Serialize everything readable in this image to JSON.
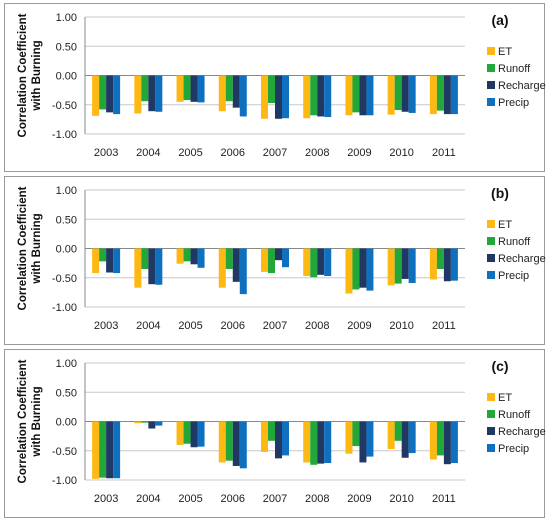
{
  "chart_data": [
    {
      "type": "bar",
      "title": "(a)",
      "ylabel_line1": "Correlation Coefficient",
      "ylabel_line2": "with Burning",
      "ylim": [
        -1.0,
        1.0
      ],
      "yticks": [
        "1.00",
        "0.50",
        "0.00",
        "-0.50",
        "-1.00"
      ],
      "categories": [
        "2003",
        "2004",
        "2005",
        "2006",
        "2007",
        "2008",
        "2009",
        "2010",
        "2011"
      ],
      "legend_position": "right",
      "series": [
        {
          "name": "ET",
          "color": "#FDB813",
          "values": [
            -0.69,
            -0.65,
            -0.45,
            -0.61,
            -0.74,
            -0.73,
            -0.68,
            -0.67,
            -0.66
          ]
        },
        {
          "name": "Runoff",
          "color": "#22A838",
          "values": [
            -0.58,
            -0.44,
            -0.42,
            -0.44,
            -0.47,
            -0.68,
            -0.63,
            -0.59,
            -0.6
          ]
        },
        {
          "name": "Recharge",
          "color": "#1F3864",
          "values": [
            -0.63,
            -0.61,
            -0.45,
            -0.55,
            -0.74,
            -0.7,
            -0.68,
            -0.62,
            -0.66
          ]
        },
        {
          "name": "Precip",
          "color": "#1070C0",
          "values": [
            -0.66,
            -0.62,
            -0.46,
            -0.7,
            -0.73,
            -0.71,
            -0.68,
            -0.64,
            -0.66
          ]
        }
      ]
    },
    {
      "type": "bar",
      "title": "(b)",
      "ylabel_line1": "Correlation Coefficient",
      "ylabel_line2": "with Burning",
      "ylim": [
        -1.0,
        1.0
      ],
      "yticks": [
        "1.00",
        "0.50",
        "0.00",
        "-0.50",
        "-1.00"
      ],
      "categories": [
        "2003",
        "2004",
        "2005",
        "2006",
        "2007",
        "2008",
        "2009",
        "2010",
        "2011"
      ],
      "legend_position": "right",
      "series": [
        {
          "name": "ET",
          "color": "#FDB813",
          "values": [
            -0.42,
            -0.67,
            -0.26,
            -0.67,
            -0.4,
            -0.47,
            -0.77,
            -0.63,
            -0.53
          ]
        },
        {
          "name": "Runoff",
          "color": "#22A838",
          "values": [
            -0.22,
            -0.35,
            -0.22,
            -0.35,
            -0.42,
            -0.49,
            -0.7,
            -0.6,
            -0.35
          ]
        },
        {
          "name": "Recharge",
          "color": "#1F3864",
          "values": [
            -0.41,
            -0.61,
            -0.27,
            -0.57,
            -0.2,
            -0.45,
            -0.67,
            -0.52,
            -0.56
          ]
        },
        {
          "name": "Precip",
          "color": "#1070C0",
          "values": [
            -0.42,
            -0.62,
            -0.33,
            -0.78,
            -0.32,
            -0.47,
            -0.72,
            -0.59,
            -0.55
          ]
        }
      ]
    },
    {
      "type": "bar",
      "title": "(c)",
      "ylabel_line1": "Correlation Coefficient",
      "ylabel_line2": "with Burning",
      "ylim": [
        -1.0,
        1.0
      ],
      "yticks": [
        "1.00",
        "0.50",
        "0.00",
        "-0.50",
        "-1.00"
      ],
      "categories": [
        "2003",
        "2004",
        "2005",
        "2006",
        "2007",
        "2008",
        "2009",
        "2010",
        "2011"
      ],
      "legend_position": "right",
      "series": [
        {
          "name": "ET",
          "color": "#FDB813",
          "values": [
            -0.98,
            -0.03,
            -0.4,
            -0.7,
            -0.52,
            -0.7,
            -0.55,
            -0.47,
            -0.65
          ]
        },
        {
          "name": "Runoff",
          "color": "#22A838",
          "values": [
            -0.96,
            -0.02,
            -0.38,
            -0.67,
            -0.33,
            -0.74,
            -0.42,
            -0.33,
            -0.58
          ]
        },
        {
          "name": "Recharge",
          "color": "#1F3864",
          "values": [
            -0.97,
            -0.12,
            -0.44,
            -0.76,
            -0.63,
            -0.72,
            -0.7,
            -0.62,
            -0.73
          ]
        },
        {
          "name": "Precip",
          "color": "#1070C0",
          "values": [
            -0.97,
            -0.07,
            -0.43,
            -0.8,
            -0.58,
            -0.71,
            -0.6,
            -0.54,
            -0.71
          ]
        }
      ]
    }
  ]
}
